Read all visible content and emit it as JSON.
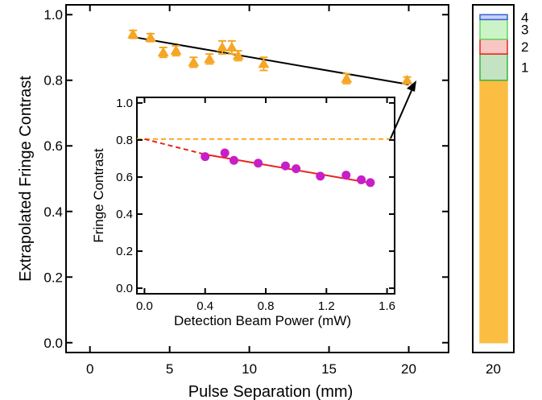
{
  "chart_data": [
    {
      "id": "main",
      "type": "scatter",
      "xlabel": "Pulse Separation (mm)",
      "ylabel": "Extrapolated Fringe Contrast",
      "xlim": [
        -1.5,
        22.5
      ],
      "ylim": [
        -0.03,
        1.03
      ],
      "x_ticks": [
        "0",
        "5",
        "10",
        "15",
        "20"
      ],
      "y_ticks": [
        "0.0",
        "0.2",
        "0.4",
        "0.6",
        "0.8",
        "1.0"
      ],
      "series": [
        {
          "marker": "triangle",
          "color": "#f5a623",
          "points": [
            {
              "x": 2.7,
              "y": 0.94,
              "err": 0.012
            },
            {
              "x": 3.8,
              "y": 0.93,
              "err": 0.012
            },
            {
              "x": 4.6,
              "y": 0.885,
              "err": 0.015
            },
            {
              "x": 5.4,
              "y": 0.89,
              "err": 0.015
            },
            {
              "x": 6.5,
              "y": 0.855,
              "err": 0.015
            },
            {
              "x": 7.5,
              "y": 0.865,
              "err": 0.015
            },
            {
              "x": 8.3,
              "y": 0.9,
              "err": 0.02
            },
            {
              "x": 8.9,
              "y": 0.9,
              "err": 0.02
            },
            {
              "x": 9.3,
              "y": 0.875,
              "err": 0.015
            },
            {
              "x": 10.9,
              "y": 0.85,
              "err": 0.02
            },
            {
              "x": 16.1,
              "y": 0.805,
              "err": 0.015
            },
            {
              "x": 19.9,
              "y": 0.8,
              "err": 0.01
            }
          ]
        }
      ],
      "fit_line": {
        "x": [
          2.7,
          20.0
        ],
        "y": [
          0.932,
          0.787
        ],
        "color": "#000000"
      }
    },
    {
      "id": "inset",
      "type": "scatter",
      "xlabel": "Detection Beam Power (mW)",
      "ylabel": "Fringe Contrast",
      "xlim": [
        -0.05,
        1.65
      ],
      "ylim": [
        -0.03,
        1.03
      ],
      "x_ticks": [
        "0.0",
        "0.4",
        "0.8",
        "1.2",
        "1.6"
      ],
      "y_ticks": [
        "0.0",
        "0.2",
        "0.4",
        "0.6",
        "0.8",
        "1.0"
      ],
      "series": [
        {
          "marker": "circle",
          "color": "#c81ec8",
          "points": [
            {
              "x": 0.4,
              "y": 0.71
            },
            {
              "x": 0.53,
              "y": 0.73
            },
            {
              "x": 0.59,
              "y": 0.69
            },
            {
              "x": 0.75,
              "y": 0.675
            },
            {
              "x": 0.93,
              "y": 0.66
            },
            {
              "x": 1.0,
              "y": 0.645
            },
            {
              "x": 1.16,
              "y": 0.605
            },
            {
              "x": 1.33,
              "y": 0.61
            },
            {
              "x": 1.43,
              "y": 0.585
            },
            {
              "x": 1.49,
              "y": 0.57
            }
          ]
        }
      ],
      "fit_line": {
        "x": [
          0.4,
          1.5
        ],
        "y": [
          0.722,
          0.567
        ],
        "color": "#e8241c"
      },
      "extrapolation": {
        "x": [
          0.0,
          0.4
        ],
        "y": [
          0.805,
          0.722
        ],
        "color": "#e8241c",
        "dashed": true
      },
      "reference_line": {
        "y": 0.805,
        "color": "#f5a623",
        "dashed": true
      }
    },
    {
      "id": "stack",
      "type": "bar",
      "x_ticks": [
        "20"
      ],
      "ylim": [
        -0.03,
        1.03
      ],
      "segments": [
        {
          "label": "",
          "from": 0.0,
          "to": 0.8,
          "fill": "#fbbd42",
          "stroke": "#fbbd42"
        },
        {
          "label": "1",
          "from": 0.8,
          "to": 0.88,
          "fill": "#c3e3c3",
          "stroke": "#3bb33b"
        },
        {
          "label": "2",
          "from": 0.88,
          "to": 0.925,
          "fill": "#f9c6c3",
          "stroke": "#e8241c"
        },
        {
          "label": "3",
          "from": 0.925,
          "to": 0.985,
          "fill": "#ccf3c7",
          "stroke": "#5dd85d"
        },
        {
          "label": "4",
          "from": 0.985,
          "to": 1.0,
          "fill": "#c3d3f3",
          "stroke": "#3b5fd8"
        }
      ]
    }
  ]
}
